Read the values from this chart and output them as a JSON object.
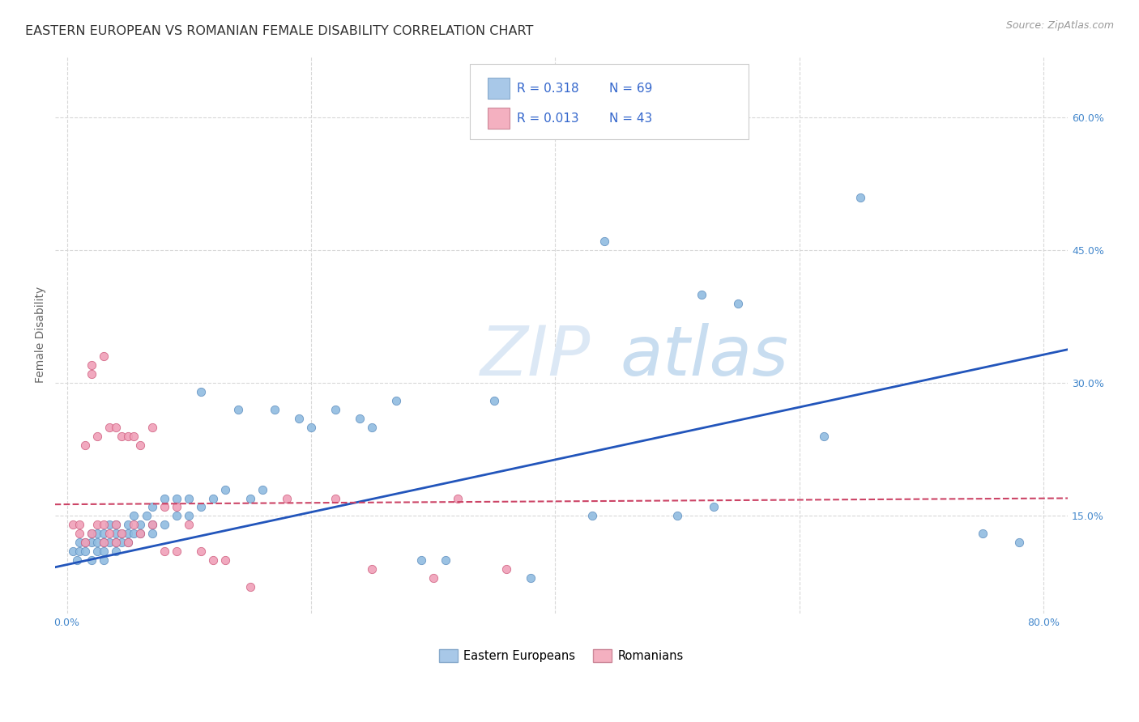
{
  "title": "EASTERN EUROPEAN VS ROMANIAN FEMALE DISABILITY CORRELATION CHART",
  "source": "Source: ZipAtlas.com",
  "ylabel": "Female Disability",
  "y_tick_labels": [
    "15.0%",
    "30.0%",
    "45.0%",
    "60.0%"
  ],
  "y_tick_values": [
    0.15,
    0.3,
    0.45,
    0.6
  ],
  "x_tick_values": [
    0.0,
    0.2,
    0.4,
    0.6,
    0.8
  ],
  "xlim": [
    -0.01,
    0.82
  ],
  "ylim": [
    0.04,
    0.67
  ],
  "watermark_zip": "ZIP",
  "watermark_atlas": "atlas",
  "legend_entries": [
    {
      "label": "Eastern Europeans",
      "color": "#a8c8e8",
      "R": "0.318",
      "N": "69"
    },
    {
      "label": "Romanians",
      "color": "#f4b0c0",
      "R": "0.013",
      "N": "43"
    }
  ],
  "blue_scatter_x": [
    0.005,
    0.008,
    0.01,
    0.01,
    0.015,
    0.015,
    0.02,
    0.02,
    0.02,
    0.025,
    0.025,
    0.025,
    0.03,
    0.03,
    0.03,
    0.03,
    0.035,
    0.035,
    0.04,
    0.04,
    0.04,
    0.04,
    0.045,
    0.045,
    0.05,
    0.05,
    0.05,
    0.055,
    0.055,
    0.06,
    0.06,
    0.065,
    0.07,
    0.07,
    0.07,
    0.08,
    0.08,
    0.09,
    0.09,
    0.1,
    0.1,
    0.11,
    0.11,
    0.12,
    0.13,
    0.14,
    0.15,
    0.16,
    0.17,
    0.19,
    0.2,
    0.22,
    0.24,
    0.25,
    0.27,
    0.29,
    0.31,
    0.35,
    0.38,
    0.43,
    0.44,
    0.5,
    0.52,
    0.53,
    0.55,
    0.62,
    0.65,
    0.75,
    0.78
  ],
  "blue_scatter_y": [
    0.11,
    0.1,
    0.11,
    0.12,
    0.11,
    0.12,
    0.1,
    0.12,
    0.13,
    0.11,
    0.12,
    0.13,
    0.1,
    0.11,
    0.12,
    0.13,
    0.12,
    0.14,
    0.11,
    0.12,
    0.13,
    0.14,
    0.12,
    0.13,
    0.12,
    0.13,
    0.14,
    0.13,
    0.15,
    0.13,
    0.14,
    0.15,
    0.13,
    0.14,
    0.16,
    0.14,
    0.17,
    0.15,
    0.17,
    0.15,
    0.17,
    0.16,
    0.29,
    0.17,
    0.18,
    0.27,
    0.17,
    0.18,
    0.27,
    0.26,
    0.25,
    0.27,
    0.26,
    0.25,
    0.28,
    0.1,
    0.1,
    0.28,
    0.08,
    0.15,
    0.46,
    0.15,
    0.4,
    0.16,
    0.39,
    0.24,
    0.51,
    0.13,
    0.12
  ],
  "pink_scatter_x": [
    0.005,
    0.01,
    0.01,
    0.015,
    0.015,
    0.02,
    0.02,
    0.02,
    0.025,
    0.025,
    0.03,
    0.03,
    0.03,
    0.035,
    0.035,
    0.04,
    0.04,
    0.04,
    0.045,
    0.045,
    0.05,
    0.05,
    0.055,
    0.055,
    0.06,
    0.06,
    0.07,
    0.07,
    0.08,
    0.08,
    0.09,
    0.09,
    0.1,
    0.11,
    0.12,
    0.13,
    0.15,
    0.18,
    0.22,
    0.25,
    0.3,
    0.32,
    0.36
  ],
  "pink_scatter_y": [
    0.14,
    0.13,
    0.14,
    0.12,
    0.23,
    0.13,
    0.31,
    0.32,
    0.14,
    0.24,
    0.12,
    0.14,
    0.33,
    0.13,
    0.25,
    0.12,
    0.14,
    0.25,
    0.13,
    0.24,
    0.12,
    0.24,
    0.14,
    0.24,
    0.13,
    0.23,
    0.14,
    0.25,
    0.11,
    0.16,
    0.11,
    0.16,
    0.14,
    0.11,
    0.1,
    0.1,
    0.07,
    0.17,
    0.17,
    0.09,
    0.08,
    0.17,
    0.09
  ],
  "blue_line_x": [
    -0.01,
    0.82
  ],
  "blue_line_y": [
    0.092,
    0.338
  ],
  "pink_line_x": [
    -0.01,
    0.82
  ],
  "pink_line_y": [
    0.163,
    0.17
  ],
  "scatter_size": 55,
  "blue_scatter_color": "#90bce0",
  "blue_scatter_edge": "#6090c0",
  "pink_scatter_color": "#f0a0b8",
  "pink_scatter_edge": "#d06080",
  "blue_line_color": "#2255bb",
  "pink_line_color": "#cc4466",
  "grid_color": "#d8d8d8",
  "background_color": "#ffffff",
  "title_fontsize": 11.5,
  "axis_label_fontsize": 10,
  "tick_fontsize": 9,
  "source_fontsize": 9,
  "legend_text_color": "#3366cc",
  "legend_box_color": "#e8e8e8"
}
